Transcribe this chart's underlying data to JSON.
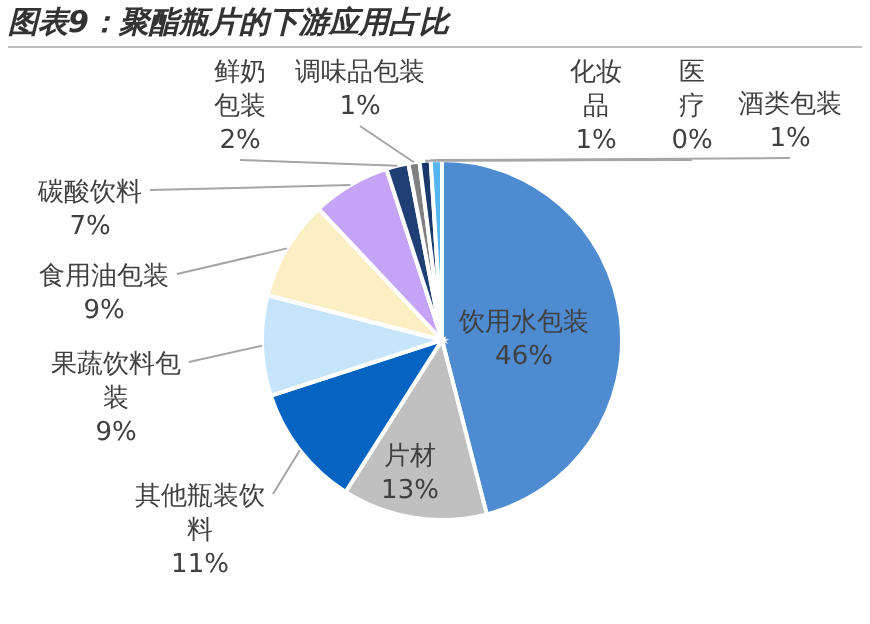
{
  "chart_data": {
    "type": "pie",
    "title": "图表9：聚酯瓶片的下游应用占比",
    "categories": [
      "饮用水包装",
      "片材",
      "其他瓶装饮料",
      "果蔬饮料包装",
      "食用油包装",
      "碳酸饮料",
      "鲜奶包装",
      "调味品包装",
      "化妆品",
      "医疗",
      "酒类包装"
    ],
    "values": [
      46,
      13,
      11,
      9,
      9,
      7,
      2,
      1,
      1,
      0,
      1
    ],
    "value_labels": [
      "46%",
      "13%",
      "11%",
      "9%",
      "9%",
      "7%",
      "2%",
      "1%",
      "1%",
      "0%",
      "1%"
    ],
    "colors": [
      "#4f8bd0",
      "#c0c0c0",
      "#0563c1",
      "#c6e5fa",
      "#fdefc4",
      "#c5a3f6",
      "#1f3f75",
      "#808080",
      "#1a3a6b",
      "#2e75b6",
      "#55b5f0"
    ],
    "legend": false
  }
}
